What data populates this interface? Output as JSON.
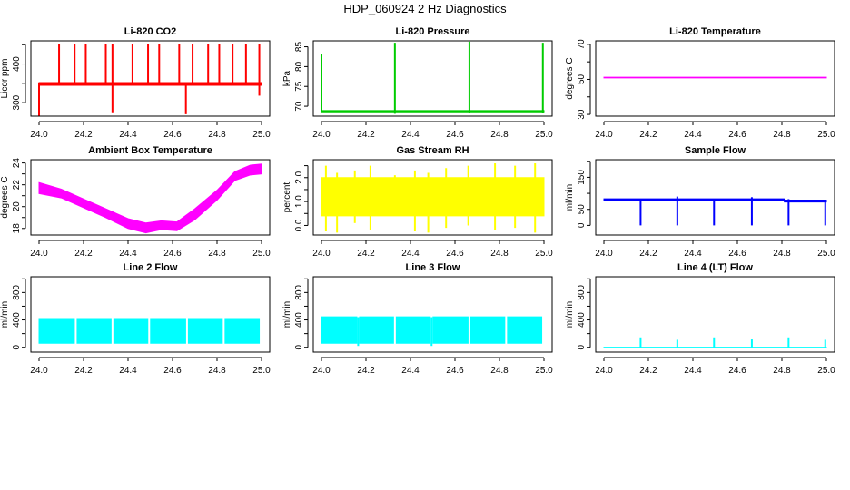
{
  "title": "HDP_060924  2 Hz Diagnostics",
  "chart_data": [
    {
      "type": "line",
      "title": "Li-820 CO2",
      "ylabel": "Licor ppm",
      "color": "#ff0000",
      "xlim": [
        24.0,
        25.0
      ],
      "ylim": [
        265,
        460
      ],
      "xticks": [
        24.0,
        24.2,
        24.4,
        24.6,
        24.8,
        25.0
      ],
      "yticks": [
        300,
        350,
        400,
        450
      ],
      "ytick_labels": [
        "300",
        "",
        "400",
        ""
      ],
      "band": {
        "x": [
          24.0,
          25.0
        ],
        "ymin": [
          345,
          345
        ],
        "ymax": [
          352,
          352
        ]
      },
      "spikes": [
        [
          24.0,
          262,
          352
        ],
        [
          24.09,
          348,
          452
        ],
        [
          24.16,
          348,
          452
        ],
        [
          24.21,
          348,
          452
        ],
        [
          24.3,
          348,
          452
        ],
        [
          24.33,
          275,
          452
        ],
        [
          24.42,
          348,
          452
        ],
        [
          24.49,
          348,
          452
        ],
        [
          24.54,
          348,
          452
        ],
        [
          24.63,
          348,
          452
        ],
        [
          24.66,
          270,
          348
        ],
        [
          24.69,
          348,
          452
        ],
        [
          24.76,
          348,
          452
        ],
        [
          24.81,
          348,
          452
        ],
        [
          24.87,
          348,
          452
        ],
        [
          24.93,
          348,
          452
        ],
        [
          24.99,
          318,
          452
        ]
      ]
    },
    {
      "type": "line",
      "title": "Li-820 Pressure",
      "ylabel": "kPa",
      "color": "#00cc00",
      "xlim": [
        24.0,
        25.0
      ],
      "ylim": [
        67.5,
        86.5
      ],
      "xticks": [
        24.0,
        24.2,
        24.4,
        24.6,
        24.8,
        25.0
      ],
      "yticks": [
        70,
        75,
        80,
        85
      ],
      "ytick_labels": [
        "70",
        "75",
        "80",
        "85"
      ],
      "band": {
        "x": [
          24.0,
          25.0
        ],
        "ymin": [
          68.6,
          68.6
        ],
        "ymax": [
          68.9,
          68.9
        ]
      },
      "spikes": [
        [
          24.0,
          68.6,
          83.2
        ],
        [
          24.33,
          68.1,
          86.0
        ],
        [
          24.665,
          68.3,
          86.3
        ],
        [
          24.995,
          68.3,
          86.0
        ]
      ]
    },
    {
      "type": "line",
      "title": "Li-820 Temperature",
      "ylabel": "degrees C",
      "color": "#ff00ff",
      "xlim": [
        24.0,
        25.0
      ],
      "ylim": [
        29,
        72
      ],
      "xticks": [
        24.0,
        24.2,
        24.4,
        24.6,
        24.8,
        25.0
      ],
      "yticks": [
        30,
        40,
        50,
        60,
        70
      ],
      "ytick_labels": [
        "30",
        "",
        "50",
        "",
        "70"
      ],
      "band": {
        "x": [
          24.0,
          25.0
        ],
        "ymin": [
          50.8,
          50.8
        ],
        "ymax": [
          51.2,
          51.2
        ]
      },
      "spikes": []
    },
    {
      "type": "line",
      "title": "Ambient Box Temperature",
      "ylabel": "degrees C",
      "color": "#ff00ff",
      "xlim": [
        24.0,
        25.0
      ],
      "ylim": [
        17.4,
        24.3
      ],
      "xticks": [
        24.0,
        24.2,
        24.4,
        24.6,
        24.8,
        25.0
      ],
      "yticks": [
        18,
        19,
        20,
        21,
        22,
        23,
        24
      ],
      "ytick_labels": [
        "18",
        "",
        "20",
        "",
        "22",
        "",
        "24"
      ],
      "band": {
        "x": [
          24.0,
          24.1,
          24.2,
          24.3,
          24.4,
          24.48,
          24.55,
          24.62,
          24.7,
          24.8,
          24.88,
          24.95,
          25.0
        ],
        "ymin": [
          21.2,
          20.8,
          19.9,
          19.0,
          18.0,
          17.6,
          17.9,
          17.8,
          18.8,
          20.6,
          22.4,
          22.9,
          23.0
        ],
        "ymax": [
          22.2,
          21.6,
          20.7,
          19.8,
          18.9,
          18.5,
          18.7,
          18.6,
          19.8,
          21.5,
          23.2,
          23.8,
          23.9
        ]
      },
      "spikes": []
    },
    {
      "type": "line",
      "title": "Gas Stream RH",
      "ylabel": "percent",
      "color": "#ffff00",
      "xlim": [
        24.0,
        25.0
      ],
      "ylim": [
        -0.4,
        2.75
      ],
      "xticks": [
        24.0,
        24.2,
        24.4,
        24.6,
        24.8,
        25.0
      ],
      "yticks": [
        0,
        0.5,
        1.0,
        1.5,
        2.0,
        2.5
      ],
      "ytick_labels": [
        "0.0",
        "",
        "1.0",
        "",
        "2.0",
        ""
      ],
      "band": {
        "x": [
          24.0,
          25.0
        ],
        "ymin": [
          0.4,
          0.4
        ],
        "ymax": [
          2.0,
          2.0
        ]
      },
      "spikes": [
        [
          24.02,
          -0.25,
          2.5
        ],
        [
          24.07,
          -0.3,
          2.2
        ],
        [
          24.15,
          0.1,
          2.3
        ],
        [
          24.22,
          -0.2,
          2.5
        ],
        [
          24.33,
          0.4,
          2.1
        ],
        [
          24.42,
          -0.25,
          2.3
        ],
        [
          24.48,
          -0.3,
          2.2
        ],
        [
          24.56,
          -0.1,
          2.4
        ],
        [
          24.66,
          0.0,
          2.5
        ],
        [
          24.78,
          -0.2,
          2.6
        ],
        [
          24.87,
          -0.1,
          2.5
        ],
        [
          24.96,
          -0.3,
          2.6
        ]
      ]
    },
    {
      "type": "line",
      "title": "Sample Flow",
      "ylabel": "ml/min",
      "color": "#0000ff",
      "xlim": [
        24.0,
        25.0
      ],
      "ylim": [
        -30,
        205
      ],
      "xticks": [
        24.0,
        24.2,
        24.4,
        24.6,
        24.8,
        25.0
      ],
      "yticks": [
        0,
        50,
        100,
        150,
        200
      ],
      "ytick_labels": [
        "0",
        "50",
        "",
        "150",
        ""
      ],
      "band": {
        "x": [
          24.0,
          24.81,
          24.811,
          25.0
        ],
        "ymin": [
          77,
          77,
          73,
          73
        ],
        "ymax": [
          83,
          83,
          79,
          79
        ]
      },
      "spikes": [
        [
          24.165,
          0,
          80
        ],
        [
          24.33,
          0,
          90
        ],
        [
          24.495,
          0,
          80
        ],
        [
          24.665,
          0,
          88
        ],
        [
          24.83,
          0,
          82
        ],
        [
          24.995,
          0,
          76
        ]
      ]
    },
    {
      "type": "line",
      "title": "Line 2 Flow",
      "ylabel": "ml/min",
      "color": "#00ffff",
      "xlim": [
        24.0,
        25.0
      ],
      "ylim": [
        -70,
        1030
      ],
      "xticks": [
        24.0,
        24.2,
        24.4,
        24.6,
        24.8,
        25.0
      ],
      "yticks": [
        0,
        200,
        400,
        600,
        800,
        1000
      ],
      "ytick_labels": [
        "0",
        "",
        "400",
        "",
        "800",
        ""
      ],
      "band": {
        "x": [
          24.0,
          24.99
        ],
        "ymin": [
          60,
          60
        ],
        "ymax": [
          420,
          420
        ]
      },
      "gaps": [
        24.165,
        24.33,
        24.495,
        24.665,
        24.83
      ],
      "spikes": []
    },
    {
      "type": "line",
      "title": "Line 3 Flow",
      "ylabel": "ml/min",
      "color": "#00ffff",
      "xlim": [
        24.0,
        25.0
      ],
      "ylim": [
        -70,
        1030
      ],
      "xticks": [
        24.0,
        24.2,
        24.4,
        24.6,
        24.8,
        25.0
      ],
      "yticks": [
        0,
        200,
        400,
        600,
        800,
        1000
      ],
      "ytick_labels": [
        "0",
        "",
        "400",
        "",
        "800",
        ""
      ],
      "band": {
        "x": [
          24.0,
          24.99
        ],
        "ymin": [
          60,
          60
        ],
        "ymax": [
          445,
          445
        ]
      },
      "gaps": [
        24.165,
        24.33,
        24.495,
        24.665,
        24.83
      ],
      "spikes": [
        [
          24.165,
          20,
          440
        ],
        [
          24.495,
          20,
          440
        ]
      ]
    },
    {
      "type": "line",
      "title": "Line 4 (LT) Flow",
      "ylabel": "ml/min",
      "color": "#00ffff",
      "xlim": [
        24.0,
        25.0
      ],
      "ylim": [
        -70,
        1030
      ],
      "xticks": [
        24.0,
        24.2,
        24.4,
        24.6,
        24.8,
        25.0
      ],
      "yticks": [
        0,
        200,
        400,
        600,
        800,
        1000
      ],
      "ytick_labels": [
        "0",
        "",
        "400",
        "",
        "800",
        ""
      ],
      "band": {
        "x": [
          24.0,
          25.0
        ],
        "ymin": [
          -2,
          -2
        ],
        "ymax": [
          2,
          2
        ]
      },
      "spikes": [
        [
          24.165,
          0,
          145
        ],
        [
          24.33,
          0,
          110
        ],
        [
          24.495,
          0,
          145
        ],
        [
          24.665,
          0,
          115
        ],
        [
          24.83,
          0,
          145
        ],
        [
          24.995,
          0,
          110
        ]
      ]
    }
  ]
}
